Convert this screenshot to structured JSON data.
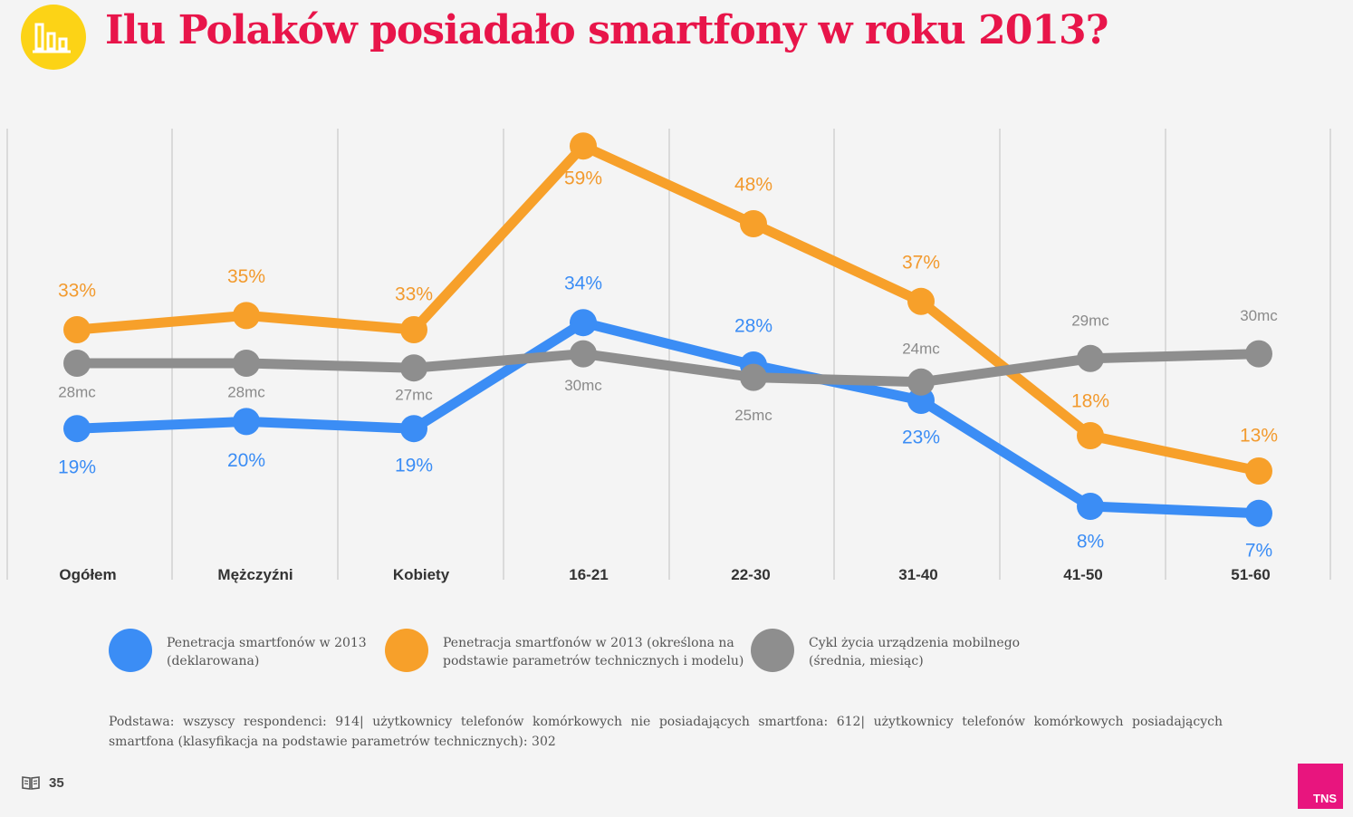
{
  "title": "Ilu Polaków posiadało smartfony w roku 2013?",
  "header_icon": "bar-chart-icon",
  "chart_data": {
    "type": "line",
    "categories": [
      "Ogółem",
      "Mężczyźni",
      "Kobiety",
      "16-21",
      "22-30",
      "31-40",
      "41-50",
      "51-60"
    ],
    "series": [
      {
        "name": "Penetracja smartfonów w 2013 (deklarowana)",
        "color": "#3b8df5",
        "values": [
          19,
          20,
          19,
          34,
          28,
          23,
          8,
          7
        ],
        "labels": [
          "19%",
          "20%",
          "19%",
          "34%",
          "28%",
          "23%",
          "8%",
          "7%"
        ]
      },
      {
        "name": "Penetracja smartfonów w 2013 (określona na podstawie parametrów technicznych i modelu)",
        "color": "#f7a02a",
        "values": [
          33,
          35,
          33,
          59,
          48,
          37,
          18,
          13
        ],
        "labels": [
          "33%",
          "35%",
          "33%",
          "59%",
          "48%",
          "37%",
          "18%",
          "13%"
        ]
      },
      {
        "name": "Cykl życia urządzenia mobilnego (średnia, miesiąc)",
        "color": "#8e8e8e",
        "values": [
          28,
          28,
          27,
          30,
          25,
          24,
          29,
          30
        ],
        "labels": [
          "28mc",
          "28mc",
          "27mc",
          "30mc",
          "25mc",
          "24mc",
          "29mc",
          "30mc"
        ]
      }
    ],
    "grid": true,
    "legend": "bottom"
  },
  "legend": [
    {
      "line1": "Penetracja smartfonów w 2013",
      "line2": "(deklarowana)",
      "color": "#3b8df5"
    },
    {
      "line1": "Penetracja smartfonów w 2013 (określona na",
      "line2": "podstawie parametrów technicznych i modelu)",
      "color": "#f7a02a"
    },
    {
      "line1": "Cykl życia urządzenia mobilnego",
      "line2": "(średnia, miesiąc)",
      "color": "#8e8e8e"
    }
  ],
  "footnote": "Podstawa: wszyscy respondenci: 914| użytkownicy telefonów komórkowych nie posiadających smartfona: 612| użytkownicy telefonów komórkowych posiadających smartfona (klasyfikacja na podstawie parametrów technicznych): 302",
  "page_number": "35",
  "page_icon": "book-icon",
  "logo_text": "TNS",
  "colors": {
    "title": "#e8154a",
    "icon_bg": "#fcd316",
    "logo_bg": "#e8157e"
  }
}
